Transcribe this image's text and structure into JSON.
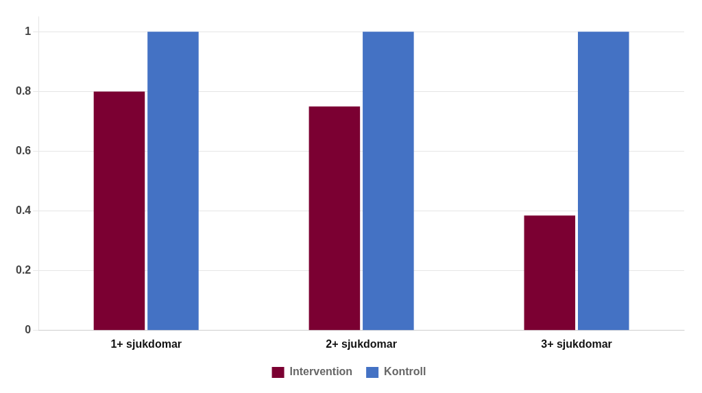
{
  "chart_data": {
    "type": "bar",
    "categories": [
      "1+ sjukdomar",
      "2+ sjukdomar",
      "3+ sjukdomar"
    ],
    "series": [
      {
        "name": "Intervention",
        "color": "#7B0032",
        "values": [
          0.8,
          0.75,
          0.385
        ]
      },
      {
        "name": "Kontroll",
        "color": "#4472C4",
        "values": [
          1.0,
          1.0,
          1.0
        ]
      }
    ],
    "ylim": [
      0,
      1.05
    ],
    "yticks": [
      0,
      0.2,
      0.4,
      0.6,
      0.8,
      1.0
    ],
    "grid": true,
    "legend": "bottom"
  }
}
